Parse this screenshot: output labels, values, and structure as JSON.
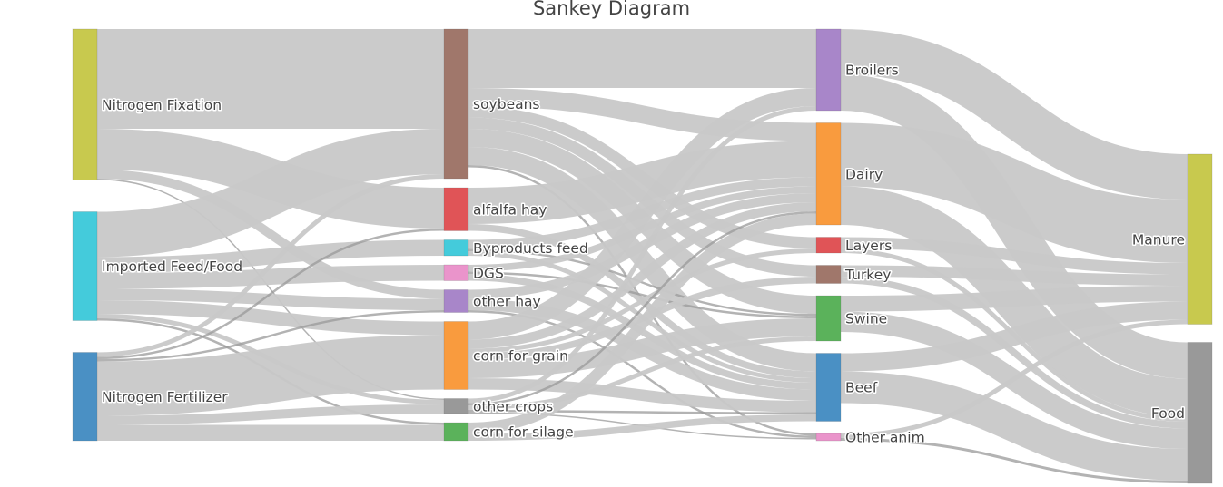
{
  "title": "Sankey Diagram",
  "chart_data": {
    "type": "sankey",
    "title": "Sankey Diagram",
    "link_color": "#c8c8c8",
    "nodes": [
      {
        "id": "nfix",
        "label": "Nitrogen Fixation",
        "color": "#c8c94e",
        "column": 0
      },
      {
        "id": "imp",
        "label": "Imported Feed/Food",
        "color": "#44cbdb",
        "column": 0
      },
      {
        "id": "nfert",
        "label": "Nitrogen Fertilizer",
        "color": "#4a90c4",
        "column": 0
      },
      {
        "id": "soy",
        "label": "soybeans",
        "color": "#a0776b",
        "column": 1
      },
      {
        "id": "alf",
        "label": "alfalfa hay",
        "color": "#e05457",
        "column": 1
      },
      {
        "id": "byp",
        "label": "Byproducts feed",
        "color": "#44cbdb",
        "column": 1
      },
      {
        "id": "dgs",
        "label": "DGS",
        "color": "#ea94cb",
        "column": 1
      },
      {
        "id": "oth",
        "label": "other hay",
        "color": "#a886c9",
        "column": 1
      },
      {
        "id": "cfg",
        "label": "corn for grain",
        "color": "#f99b3e",
        "column": 1
      },
      {
        "id": "ocr",
        "label": "other crops",
        "color": "#999999",
        "column": 1
      },
      {
        "id": "cfs",
        "label": "corn for silage",
        "color": "#5bb25b",
        "column": 1
      },
      {
        "id": "bro",
        "label": "Broilers",
        "color": "#a886c9",
        "column": 2
      },
      {
        "id": "dai",
        "label": "Dairy",
        "color": "#f99b3e",
        "column": 2
      },
      {
        "id": "lay",
        "label": "Layers",
        "color": "#e05457",
        "column": 2
      },
      {
        "id": "tur",
        "label": "Turkey",
        "color": "#a0776b",
        "column": 2
      },
      {
        "id": "swi",
        "label": "Swine",
        "color": "#5bb25b",
        "column": 2
      },
      {
        "id": "bee",
        "label": "Beef",
        "color": "#4a90c4",
        "column": 2
      },
      {
        "id": "oan",
        "label": "Other anim",
        "color": "#ea94cb",
        "column": 2
      },
      {
        "id": "man",
        "label": "Manure",
        "color": "#c8c94e",
        "column": 3
      },
      {
        "id": "foo",
        "label": "Food",
        "color": "#999999",
        "column": 3
      }
    ],
    "links": [
      {
        "source": "nfix",
        "target": "soy",
        "value": 22
      },
      {
        "source": "nfix",
        "target": "alf",
        "value": 9
      },
      {
        "source": "nfix",
        "target": "oth",
        "value": 2
      },
      {
        "source": "nfix",
        "target": "ocr",
        "value": 0.3
      },
      {
        "source": "imp",
        "target": "soy",
        "value": 10
      },
      {
        "source": "imp",
        "target": "byp",
        "value": 3.5
      },
      {
        "source": "imp",
        "target": "dgs",
        "value": 3.5
      },
      {
        "source": "imp",
        "target": "oth",
        "value": 2.5
      },
      {
        "source": "imp",
        "target": "cfg",
        "value": 3
      },
      {
        "source": "imp",
        "target": "ocr",
        "value": 1
      },
      {
        "source": "imp",
        "target": "cfs",
        "value": 0.5
      },
      {
        "source": "nfert",
        "target": "soy",
        "value": 1
      },
      {
        "source": "nfert",
        "target": "cfg",
        "value": 12
      },
      {
        "source": "nfert",
        "target": "ocr",
        "value": 2
      },
      {
        "source": "nfert",
        "target": "cfs",
        "value": 3.5
      },
      {
        "source": "nfert",
        "target": "alf",
        "value": 0.5
      },
      {
        "source": "nfert",
        "target": "oth",
        "value": 0.5
      },
      {
        "source": "soy",
        "target": "bro",
        "value": 13
      },
      {
        "source": "soy",
        "target": "dai",
        "value": 4
      },
      {
        "source": "soy",
        "target": "lay",
        "value": 2.5
      },
      {
        "source": "soy",
        "target": "tur",
        "value": 2.5
      },
      {
        "source": "soy",
        "target": "swi",
        "value": 4
      },
      {
        "source": "soy",
        "target": "bee",
        "value": 4
      },
      {
        "source": "soy",
        "target": "oan",
        "value": 0.5
      },
      {
        "source": "alf",
        "target": "dai",
        "value": 8
      },
      {
        "source": "alf",
        "target": "bee",
        "value": 1.5
      },
      {
        "source": "byp",
        "target": "dai",
        "value": 2
      },
      {
        "source": "byp",
        "target": "bee",
        "value": 1
      },
      {
        "source": "byp",
        "target": "swi",
        "value": 0.5
      },
      {
        "source": "dgs",
        "target": "dai",
        "value": 1.5
      },
      {
        "source": "dgs",
        "target": "bee",
        "value": 1.5
      },
      {
        "source": "dgs",
        "target": "swi",
        "value": 0.5
      },
      {
        "source": "oth",
        "target": "dai",
        "value": 2
      },
      {
        "source": "oth",
        "target": "bee",
        "value": 2.5
      },
      {
        "source": "oth",
        "target": "oan",
        "value": 0.5
      },
      {
        "source": "cfg",
        "target": "bro",
        "value": 4
      },
      {
        "source": "cfg",
        "target": "dai",
        "value": 2
      },
      {
        "source": "cfg",
        "target": "lay",
        "value": 1
      },
      {
        "source": "cfg",
        "target": "tur",
        "value": 1.5
      },
      {
        "source": "cfg",
        "target": "swi",
        "value": 4
      },
      {
        "source": "cfg",
        "target": "bee",
        "value": 2.5
      },
      {
        "source": "ocr",
        "target": "bro",
        "value": 1
      },
      {
        "source": "ocr",
        "target": "dai",
        "value": 0.5
      },
      {
        "source": "ocr",
        "target": "swi",
        "value": 1
      },
      {
        "source": "ocr",
        "target": "bee",
        "value": 0.5
      },
      {
        "source": "ocr",
        "target": "oan",
        "value": 0.3
      },
      {
        "source": "cfs",
        "target": "dai",
        "value": 2.5
      },
      {
        "source": "cfs",
        "target": "bee",
        "value": 1.5
      },
      {
        "source": "bro",
        "target": "man",
        "value": 10
      },
      {
        "source": "bro",
        "target": "foo",
        "value": 8
      },
      {
        "source": "dai",
        "target": "man",
        "value": 14
      },
      {
        "source": "dai",
        "target": "foo",
        "value": 8.5
      },
      {
        "source": "lay",
        "target": "man",
        "value": 2.5
      },
      {
        "source": "lay",
        "target": "foo",
        "value": 1
      },
      {
        "source": "tur",
        "target": "man",
        "value": 2.5
      },
      {
        "source": "tur",
        "target": "foo",
        "value": 1.5
      },
      {
        "source": "swi",
        "target": "man",
        "value": 3.5
      },
      {
        "source": "swi",
        "target": "foo",
        "value": 4.5
      },
      {
        "source": "bee",
        "target": "man",
        "value": 4
      },
      {
        "source": "bee",
        "target": "foo",
        "value": 7
      },
      {
        "source": "oan",
        "target": "man",
        "value": 1
      },
      {
        "source": "oan",
        "target": "foo",
        "value": 0.6
      }
    ]
  }
}
